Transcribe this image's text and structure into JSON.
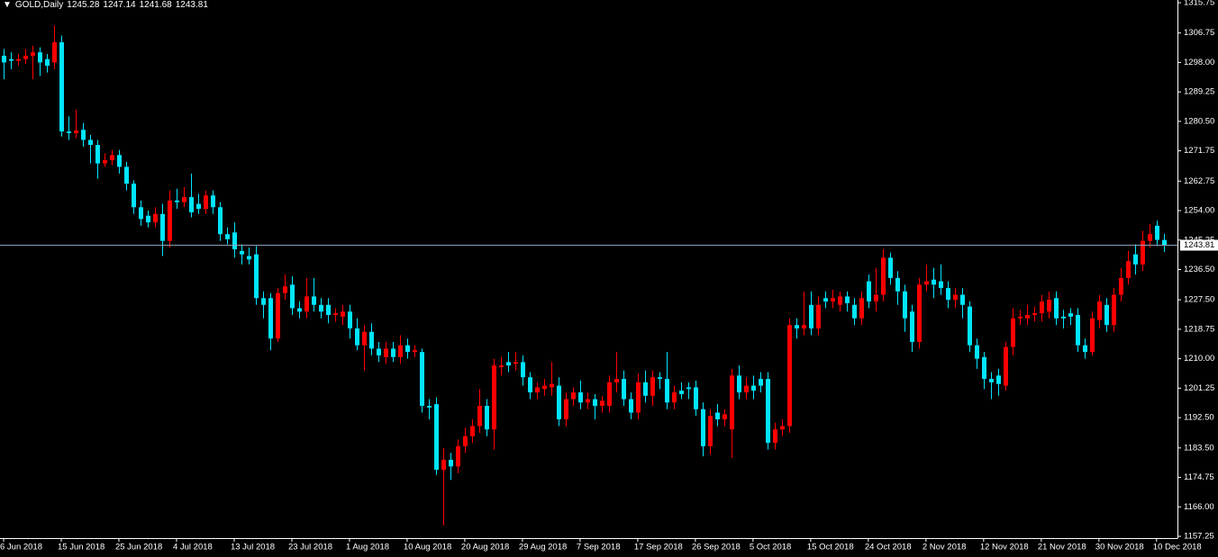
{
  "chart_data": {
    "type": "candlestick",
    "title": "GOLD,Daily",
    "open": [
      1300,
      1299,
      1298.5,
      1299,
      1300,
      1301,
      1299,
      1298,
      1304,
      1277.5,
      1277,
      1278,
      1275,
      1273.5,
      1268,
      1269,
      1270.5,
      1267,
      1262,
      1255,
      1252.5,
      1250.5,
      1253,
      1245,
      1257,
      1256.5,
      1258,
      1256,
      1254.5,
      1258.5,
      1255,
      1247,
      1247.5,
      1242,
      1240.5,
      1241,
      1228,
      1228,
      1216,
      1229.5,
      1232,
      1225,
      1224,
      1228.5,
      1226,
      1226,
      1223,
      1222.5,
      1224,
      1219,
      1214,
      1218,
      1213,
      1210.5,
      1213,
      1210.5,
      1214,
      1212,
      1212,
      1196,
      1196.5,
      1177,
      1180,
      1178,
      1184,
      1187,
      1190,
      1196,
      1189,
      1207.5,
      1209,
      1208.5,
      1209,
      1204.5,
      1200,
      1201,
      1201.5,
      1202,
      1192,
      1198,
      1200,
      1197,
      1198,
      1196,
      1196,
      1203,
      1204,
      1198,
      1194,
      1203,
      1199,
      1204.5,
      1204,
      1197,
      1200.5,
      1201.5,
      1201.5,
      1195,
      1184,
      1194,
      1192,
      1189,
      1205,
      1200,
      1202,
      1204,
      1204,
      1185,
      1189,
      1190,
      1220,
      1219,
      1226,
      1219,
      1228,
      1227,
      1226,
      1228.5,
      1226,
      1222,
      1233,
      1227,
      1229,
      1240,
      1234,
      1230,
      1224,
      1215,
      1232,
      1233.5,
      1233,
      1231,
      1227.5,
      1229,
      1225.5,
      1214,
      1210.5,
      1204,
      1205,
      1202,
      1213.5,
      1222,
      1222,
      1223,
      1223.5,
      1224,
      1228,
      1222.5,
      1223.5,
      1223,
      1214,
      1212,
      1221.5,
      1226,
      1220,
      1229,
      1234,
      1241,
      1238,
      1245,
      1249.5,
      1245.28
    ],
    "high": [
      1302,
      1301,
      1300.5,
      1302,
      1303,
      1302.5,
      1300.5,
      1309,
      1306,
      1282,
      1284,
      1280,
      1276.5,
      1275,
      1271,
      1272,
      1272,
      1268.5,
      1263,
      1257,
      1254,
      1255,
      1256,
      1260,
      1260.5,
      1261,
      1265,
      1259,
      1260,
      1260,
      1256.5,
      1249,
      1250.5,
      1244,
      1243,
      1243.5,
      1230,
      1229.5,
      1231,
      1235,
      1234.5,
      1227,
      1234,
      1234,
      1228,
      1228,
      1225,
      1226,
      1226,
      1222,
      1220,
      1220.5,
      1215,
      1215,
      1215,
      1217,
      1216,
      1214,
      1213,
      1198,
      1198.5,
      1183.5,
      1182,
      1186,
      1189.5,
      1192,
      1201,
      1198,
      1210,
      1210.5,
      1212,
      1212,
      1211,
      1206,
      1203,
      1204,
      1209,
      1204.5,
      1200,
      1201.5,
      1203.5,
      1200,
      1199.5,
      1199,
      1205,
      1212,
      1206.5,
      1200,
      1205.5,
      1206.5,
      1206.5,
      1206,
      1212,
      1202,
      1203,
      1203,
      1203.5,
      1197,
      1195,
      1196.5,
      1195,
      1207,
      1208,
      1204.5,
      1205,
      1206,
      1206,
      1191,
      1192,
      1222,
      1222,
      1230,
      1230,
      1228.5,
      1230,
      1230.5,
      1230,
      1230,
      1228,
      1230,
      1235,
      1237,
      1242.5,
      1241.5,
      1236,
      1232,
      1226,
      1234,
      1238,
      1237,
      1238,
      1233,
      1231,
      1231,
      1227,
      1216,
      1212,
      1206,
      1207,
      1215,
      1225,
      1224.5,
      1226,
      1225.5,
      1229,
      1230,
      1230,
      1224.5,
      1225,
      1225,
      1216,
      1224,
      1229,
      1228,
      1231,
      1237,
      1242,
      1244,
      1248,
      1250,
      1251,
      1247.14
    ],
    "low": [
      1293,
      1296,
      1297,
      1297.5,
      1293,
      1294,
      1295,
      1296,
      1276,
      1275,
      1275.5,
      1273,
      1268,
      1263.5,
      1267,
      1267.5,
      1265,
      1260,
      1253,
      1249.5,
      1249,
      1249,
      1240.5,
      1243,
      1254.5,
      1255,
      1252,
      1253,
      1253,
      1253,
      1245,
      1244,
      1240,
      1238,
      1238,
      1226,
      1222,
      1212.5,
      1215,
      1227.5,
      1223,
      1222,
      1222,
      1224,
      1222,
      1220.5,
      1221,
      1220,
      1216,
      1212.5,
      1206.5,
      1211,
      1209,
      1208.5,
      1209,
      1208.5,
      1210,
      1210.5,
      1194,
      1192,
      1175.5,
      1160.5,
      1174,
      1176,
      1182,
      1185,
      1188,
      1187,
      1183,
      1205,
      1206,
      1206.5,
      1202,
      1198,
      1198,
      1199,
      1199,
      1190,
      1190,
      1196,
      1195,
      1195,
      1192,
      1194,
      1194,
      1200,
      1196,
      1192,
      1192,
      1197,
      1196,
      1201,
      1195,
      1195,
      1198,
      1198,
      1193,
      1181,
      1181.5,
      1190,
      1190,
      1180.5,
      1198,
      1198,
      1198,
      1200,
      1183,
      1183,
      1187,
      1188,
      1216,
      1217,
      1217,
      1217,
      1225,
      1225,
      1224,
      1224,
      1220,
      1220,
      1225,
      1224,
      1227,
      1232,
      1226,
      1218,
      1212,
      1213,
      1230,
      1228,
      1229,
      1225,
      1225,
      1222,
      1212,
      1207,
      1201,
      1198,
      1199,
      1200.5,
      1211,
      1220,
      1220,
      1221,
      1221,
      1222,
      1220,
      1219,
      1220,
      1212,
      1210,
      1211,
      1219,
      1218,
      1218,
      1227,
      1232,
      1235,
      1236,
      1243,
      1243.5,
      1241.68
    ],
    "close": [
      1298,
      1298.5,
      1299,
      1300,
      1301,
      1298,
      1297,
      1304,
      1277.5,
      1277,
      1277.8,
      1275,
      1273.5,
      1268,
      1269,
      1270.5,
      1267,
      1262,
      1255,
      1251.5,
      1250.5,
      1253,
      1245,
      1257,
      1256.5,
      1258,
      1253.5,
      1254.5,
      1258.5,
      1255,
      1247,
      1245.5,
      1242.5,
      1241,
      1239.5,
      1228,
      1226,
      1216,
      1229.5,
      1231.5,
      1225,
      1224,
      1228.5,
      1226,
      1224,
      1223,
      1223.5,
      1224,
      1219,
      1214,
      1218,
      1213,
      1211,
      1213,
      1210.5,
      1214,
      1212,
      1212.5,
      1196,
      1195.5,
      1177,
      1180,
      1178,
      1184,
      1187,
      1190,
      1196,
      1189,
      1208,
      1208,
      1208,
      1209,
      1204.5,
      1200,
      1201.5,
      1202,
      1202.5,
      1192,
      1198,
      1200,
      1197,
      1198,
      1196,
      1197.5,
      1203,
      1204,
      1198,
      1194,
      1203,
      1199,
      1204.5,
      1204,
      1197,
      1200,
      1199.5,
      1201,
      1195,
      1184,
      1193,
      1192,
      1193.5,
      1205,
      1200,
      1202,
      1200.5,
      1202,
      1185,
      1189,
      1190,
      1220,
      1219,
      1220,
      1219,
      1226,
      1227,
      1228,
      1228.5,
      1226.5,
      1222,
      1228,
      1227,
      1229,
      1240,
      1234,
      1230,
      1222,
      1215,
      1232,
      1233,
      1232,
      1231,
      1227.5,
      1229,
      1226,
      1214,
      1210,
      1204,
      1203,
      1202.5,
      1213.5,
      1222,
      1222.5,
      1223,
      1223.5,
      1227,
      1227.5,
      1222,
      1222,
      1222.5,
      1214,
      1212,
      1222,
      1227,
      1220,
      1229,
      1234,
      1239,
      1238,
      1245,
      1247,
      1245.3,
      1243.81
    ],
    "up_color": "#ff0000",
    "down_color": "#00e5ff",
    "xlim": [
      -0.5,
      162.9
    ],
    "xticks": [
      {
        "value": 0,
        "label": "6 Jun 2018"
      },
      {
        "value": 8,
        "label": "15 Jun 2018"
      },
      {
        "value": 16,
        "label": "25 Jun 2018"
      },
      {
        "value": 24,
        "label": "4 Jul 2018"
      },
      {
        "value": 32,
        "label": "13 Jul 2018"
      },
      {
        "value": 40,
        "label": "23 Jul 2018"
      },
      {
        "value": 48,
        "label": "1 Aug 2018"
      },
      {
        "value": 56,
        "label": "10 Aug 2018"
      },
      {
        "value": 64,
        "label": "20 Aug 2018"
      },
      {
        "value": 72,
        "label": "29 Aug 2018"
      },
      {
        "value": 80,
        "label": "7 Sep 2018"
      },
      {
        "value": 88,
        "label": "17 Sep 2018"
      },
      {
        "value": 96,
        "label": "26 Sep 2018"
      },
      {
        "value": 104,
        "label": "5 Oct 2018"
      },
      {
        "value": 112,
        "label": "15 Oct 2018"
      },
      {
        "value": 120,
        "label": "24 Oct 2018"
      },
      {
        "value": 128,
        "label": "2 Nov 2018"
      },
      {
        "value": 136,
        "label": "12 Nov 2018"
      },
      {
        "value": 144,
        "label": "21 Nov 2018"
      },
      {
        "value": 152,
        "label": "30 Nov 2018"
      },
      {
        "value": 160,
        "label": "10 Dec 2018"
      }
    ],
    "ylim": [
      1156.72,
      1316.55
    ],
    "yticks": [
      {
        "value": 1315.75,
        "label": "1315.75"
      },
      {
        "value": 1306.75,
        "label": "1306.75"
      },
      {
        "value": 1298,
        "label": "1298.00"
      },
      {
        "value": 1289.25,
        "label": "1289.25"
      },
      {
        "value": 1280.5,
        "label": "1280.50"
      },
      {
        "value": 1271.75,
        "label": "1271.75"
      },
      {
        "value": 1262.75,
        "label": "1262.75"
      },
      {
        "value": 1254,
        "label": "1254.00"
      },
      {
        "value": 1245.25,
        "label": "1245.25"
      },
      {
        "value": 1236.5,
        "label": "1236.50"
      },
      {
        "value": 1227.5,
        "label": "1227.50"
      },
      {
        "value": 1218.75,
        "label": "1218.75"
      },
      {
        "value": 1210,
        "label": "1210.00"
      },
      {
        "value": 1201.25,
        "label": "1201.25"
      },
      {
        "value": 1192.5,
        "label": "1192.50"
      },
      {
        "value": 1183.5,
        "label": "1183.50"
      },
      {
        "value": 1174.75,
        "label": "1174.75"
      },
      {
        "value": 1166,
        "label": "1166.00"
      },
      {
        "value": 1157.25,
        "label": "1157.25"
      }
    ]
  }
}
